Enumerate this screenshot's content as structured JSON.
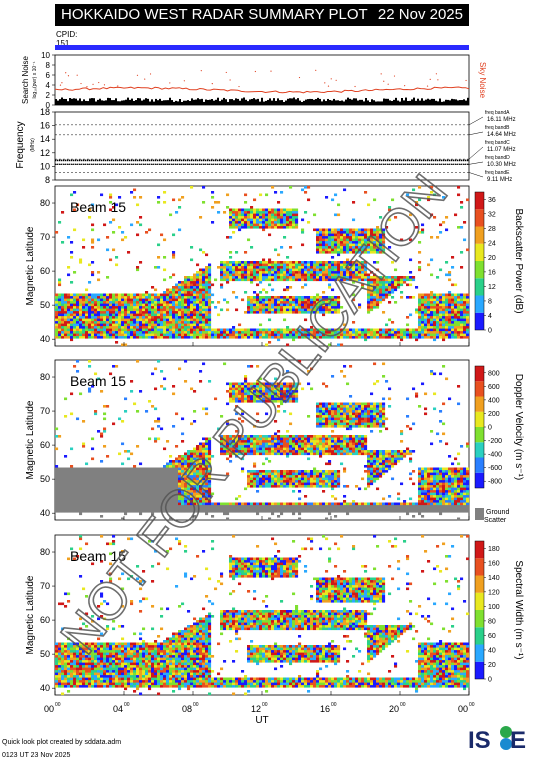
{
  "header": {
    "title": "HOKKAIDO WEST RADAR SUMMARY PLOT",
    "date": "22 Nov 2025",
    "cpid_label": "CPID:",
    "cpid_value": "151"
  },
  "noise_panel": {
    "ylabel": "Search Noise",
    "ylabel_sub": "log₁₀(pwr) x 10⁻¹",
    "right_label": "Sky Noise",
    "ticks": [
      "10",
      "8",
      "6",
      "4",
      "2",
      "0"
    ],
    "range": [
      0,
      10
    ],
    "colors": {
      "search": "#000000",
      "sky": "#e04020"
    }
  },
  "freq_panel": {
    "ylabel": "Frequency",
    "ylabel_sub": "(MHz)",
    "ticks": [
      "18",
      "16",
      "14",
      "12",
      "10",
      "8"
    ],
    "range": [
      8,
      18
    ],
    "bands": [
      {
        "label": "freq bandA",
        "value": "16.11 MHz",
        "mhz": 16.11
      },
      {
        "label": "freq bandB",
        "value": "14.64 MHz",
        "mhz": 14.64
      },
      {
        "label": "freq bandC",
        "value": "11.07 MHz",
        "mhz": 11.07
      },
      {
        "label": "freq bandD",
        "value": "10.30 MHz",
        "mhz": 10.3
      },
      {
        "label": "freq bandE",
        "value": "9.11 MHz",
        "mhz": 9.11
      }
    ]
  },
  "chart_data": [
    {
      "type": "heatmap",
      "beam_label": "Beam 15",
      "ylabel": "Magnetic Latitude",
      "yticks": [
        "80",
        "70",
        "60",
        "50",
        "40"
      ],
      "ylim": [
        38,
        85
      ],
      "xlim_hours": [
        0,
        24
      ],
      "colorbar_label": "Backscatter Power (dB)",
      "colorbar_ticks": [
        "36",
        "32",
        "28",
        "24",
        "20",
        "16",
        "12",
        "8",
        "4",
        "0"
      ],
      "colorbar_range": [
        0,
        38
      ],
      "colorbar_colors": [
        "#1a1aff",
        "#2aa8ff",
        "#2ad08a",
        "#7fe030",
        "#e8e820",
        "#f0a020",
        "#e85020",
        "#d01818"
      ]
    },
    {
      "type": "heatmap",
      "beam_label": "Beam 15",
      "ylabel": "Magnetic Latitude",
      "yticks": [
        "80",
        "70",
        "60",
        "50",
        "40"
      ],
      "ylim": [
        38,
        85
      ],
      "xlim_hours": [
        0,
        24
      ],
      "colorbar_label": "Doppler Velocity (m s⁻¹)",
      "colorbar_ticks": [
        "800",
        "600",
        "400",
        "200",
        "0",
        "-200",
        "-400",
        "-600",
        "-800"
      ],
      "colorbar_range": [
        -900,
        900
      ],
      "colorbar_colors": [
        "#1a1aff",
        "#2a7fff",
        "#2ad0c0",
        "#7fe030",
        "#e8e820",
        "#f0a020",
        "#e85020",
        "#d01818"
      ],
      "ground_scatter_label": "Ground",
      "ground_scatter_label2": "Scatter",
      "ground_scatter_color": "#808080"
    },
    {
      "type": "heatmap",
      "beam_label": "Beam 15",
      "ylabel": "Magnetic Latitude",
      "yticks": [
        "80",
        "70",
        "60",
        "50",
        "40"
      ],
      "ylim": [
        38,
        85
      ],
      "xlim_hours": [
        0,
        24
      ],
      "colorbar_label": "Spectral Width (m s⁻¹)",
      "colorbar_ticks": [
        "180",
        "160",
        "140",
        "120",
        "100",
        "80",
        "60",
        "40",
        "20",
        "0"
      ],
      "colorbar_range": [
        0,
        190
      ],
      "colorbar_colors": [
        "#1a1aff",
        "#2aa8ff",
        "#2ad08a",
        "#7fe030",
        "#e8e820",
        "#f0a020",
        "#e85020",
        "#d01818"
      ]
    }
  ],
  "x_axis": {
    "ticks": [
      {
        "h": "00",
        "s": "00",
        "hour": 0
      },
      {
        "h": "04",
        "s": "00",
        "hour": 4
      },
      {
        "h": "08",
        "s": "00",
        "hour": 8
      },
      {
        "h": "12",
        "s": "00",
        "hour": 12
      },
      {
        "h": "16",
        "s": "00",
        "hour": 16
      },
      {
        "h": "20",
        "s": "00",
        "hour": 20
      },
      {
        "h": "00",
        "s": "00",
        "hour": 24
      }
    ],
    "label": "UT"
  },
  "watermark": "NOT FOR PUBLICATION",
  "footer": {
    "line1": "Quick look plot created by sddata.adm",
    "line2": "0123 UT 23 Nov 2025"
  },
  "logo": {
    "text": "IS",
    "text2": "E"
  }
}
